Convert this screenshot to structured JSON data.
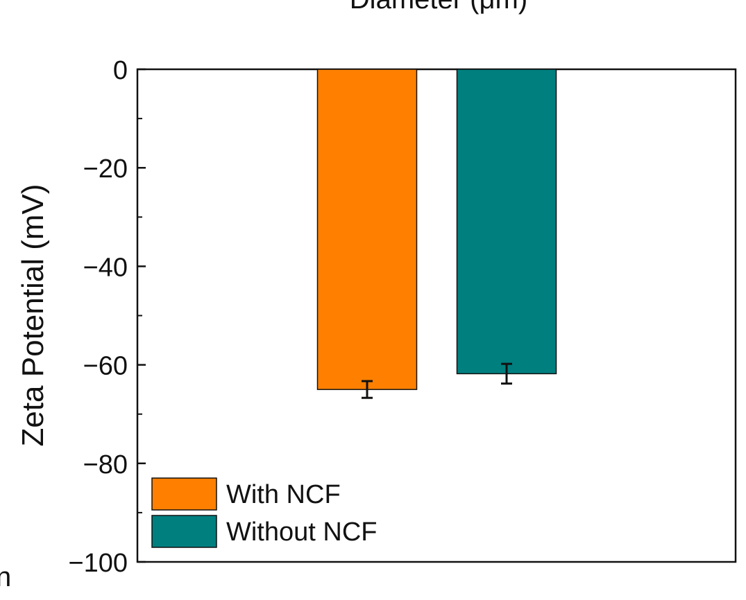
{
  "chart_data": {
    "type": "bar",
    "title": "",
    "top_cropped_label": "Diameter (μm)",
    "xlabel": "",
    "ylabel": "Zeta Potential (mV)",
    "ylim": [
      -100,
      0
    ],
    "yticks": [
      0,
      -20,
      -40,
      -60,
      -80,
      -100
    ],
    "ytick_labels": [
      "0",
      "−20",
      "−40",
      "−60",
      "−80",
      "−100"
    ],
    "series": [
      {
        "name": "With NCF",
        "value": -65,
        "error": 1.7,
        "color": "#ff8000"
      },
      {
        "name": "Without NCF",
        "value": -61.8,
        "error": 2.0,
        "color": "#007f7f"
      }
    ],
    "legend_position": "bottom-left",
    "left_edge_fragment": "n"
  }
}
